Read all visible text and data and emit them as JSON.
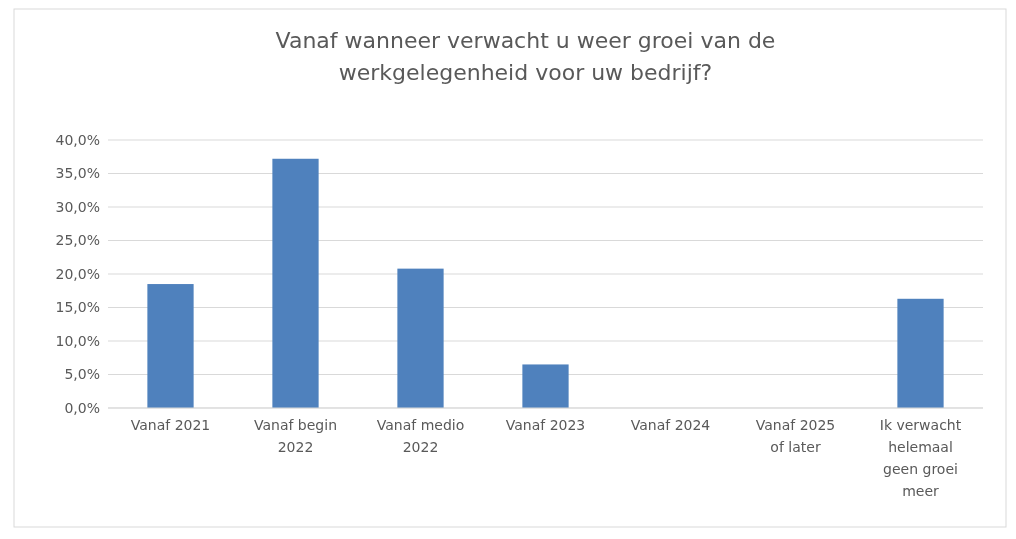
{
  "chart_data": {
    "type": "bar",
    "title": "Vanaf wanneer verwacht u weer groei van de werkgelegenheid voor uw bedrijf?",
    "categories": [
      "Vanaf 2021",
      "Vanaf begin 2022",
      "Vanaf medio 2022",
      "Vanaf 2023",
      "Vanaf 2024",
      "Vanaf 2025 of later",
      "Ik verwacht helemaal geen groei meer"
    ],
    "values": [
      18.5,
      37.2,
      20.8,
      6.5,
      0,
      0,
      16.3
    ],
    "color": "#4f81bd",
    "ylim": [
      0,
      40
    ],
    "yticks": [
      {
        "value": 0,
        "label": "0,0%"
      },
      {
        "value": 5,
        "label": "5,0%"
      },
      {
        "value": 10,
        "label": "10,0%"
      },
      {
        "value": 15,
        "label": "15,0%"
      },
      {
        "value": 20,
        "label": "20,0%"
      },
      {
        "value": 25,
        "label": "25,0%"
      },
      {
        "value": 30,
        "label": "30,0%"
      },
      {
        "value": 35,
        "label": "35,0%"
      },
      {
        "value": 40,
        "label": "40,0%"
      }
    ],
    "grid": "y"
  }
}
